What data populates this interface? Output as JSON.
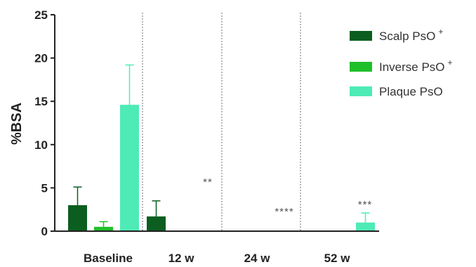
{
  "chart_data": {
    "type": "bar",
    "ylabel": "%BSA",
    "ylim": [
      0,
      25
    ],
    "yticks": [
      "0",
      "5",
      "10",
      "15",
      "20",
      "25"
    ],
    "categories": [
      "Baseline",
      "12 w",
      "24 w",
      "52 w"
    ],
    "series": [
      {
        "name": "Scalp PsO",
        "superscript": "+",
        "color": "#0b5e1f",
        "values": [
          3.0,
          1.7,
          0.0,
          0.0
        ],
        "errors": [
          2.1,
          1.8,
          0,
          0
        ]
      },
      {
        "name": "Inverse PsO",
        "superscript": "+",
        "color": "#1fbf2a",
        "values": [
          0.5,
          0.0,
          0.0,
          0.0
        ],
        "errors": [
          0.6,
          0,
          0,
          0
        ]
      },
      {
        "name": "Plaque PsO",
        "superscript": "",
        "color": "#4eebb6",
        "values": [
          14.6,
          0.0,
          0.0,
          1.0
        ],
        "errors": [
          4.6,
          0,
          0,
          1.1
        ]
      }
    ],
    "annotations": [
      "**",
      "****",
      "***"
    ],
    "legend_position": "top-right",
    "grid": false,
    "separators": "dotted vertical lines between time points"
  }
}
